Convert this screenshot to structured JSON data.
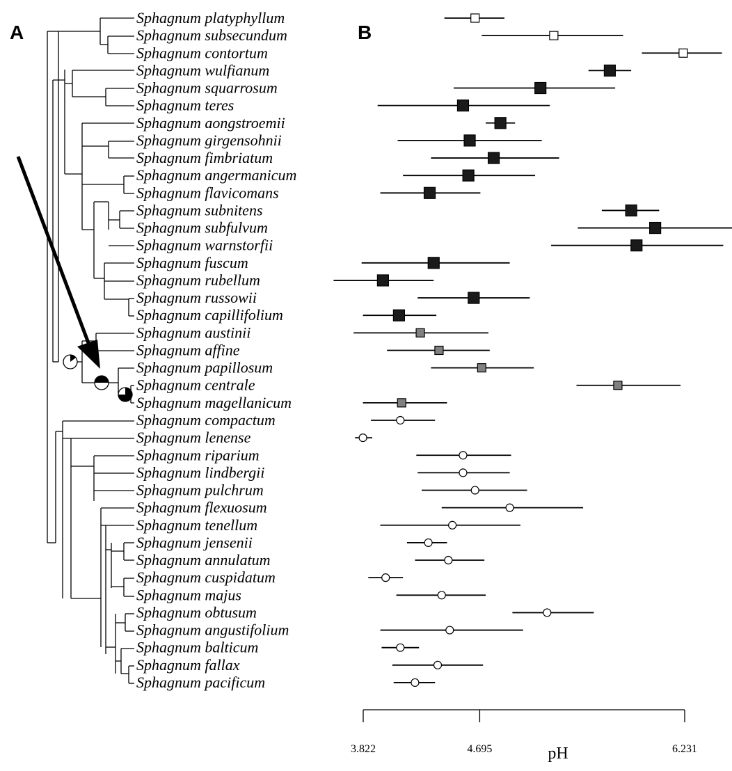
{
  "panels": {
    "a": "A",
    "b": "B"
  },
  "colors": {
    "ink": "#000000",
    "black_group": "#1a1a1a",
    "grey_group": "#808080",
    "white_group": "#ffffff"
  },
  "chart_data": {
    "type": "scatter",
    "subtype": "point-with-range (dot and whisker), aligned to phylogenetic tree",
    "xlabel": "pH",
    "x_ticks": [
      3.822,
      4.695,
      6.231
    ],
    "x_tick_labels": [
      "3.822",
      "4.695",
      "6.231"
    ],
    "xlim": [
      3.822,
      6.231
    ],
    "marker_legend": {
      "open-square": "white square",
      "black-square": "black square",
      "grey-square": "grey square",
      "open-circle": "white circle"
    },
    "species": [
      {
        "name": "Sphagnum platyphyllum",
        "marker": "open-square",
        "ph": 4.66,
        "low": 4.43,
        "high": 4.88
      },
      {
        "name": "Sphagnum subsecundum",
        "marker": "open-square",
        "ph": 5.25,
        "low": 4.71,
        "high": 5.77
      },
      {
        "name": "Sphagnum contortum",
        "marker": "open-square",
        "ph": 6.22,
        "low": 5.91,
        "high": 6.51
      },
      {
        "name": "Sphagnum wulfianum",
        "marker": "black-square",
        "ph": 5.67,
        "low": 5.51,
        "high": 5.83
      },
      {
        "name": "Sphagnum squarrosum",
        "marker": "black-square",
        "ph": 5.15,
        "low": 4.5,
        "high": 5.71
      },
      {
        "name": "Sphagnum teres",
        "marker": "black-square",
        "ph": 4.57,
        "low": 3.93,
        "high": 5.22
      },
      {
        "name": "Sphagnum aongstroemii",
        "marker": "black-square",
        "ph": 4.85,
        "low": 4.74,
        "high": 4.96
      },
      {
        "name": "Sphagnum girgensohnii",
        "marker": "black-square",
        "ph": 4.62,
        "low": 4.08,
        "high": 5.16
      },
      {
        "name": "Sphagnum fimbriatum",
        "marker": "black-square",
        "ph": 4.8,
        "low": 4.33,
        "high": 5.29
      },
      {
        "name": "Sphagnum angermanicum",
        "marker": "black-square",
        "ph": 4.61,
        "low": 4.12,
        "high": 5.11
      },
      {
        "name": "Sphagnum flavicomans",
        "marker": "black-square",
        "ph": 4.32,
        "low": 3.95,
        "high": 4.7
      },
      {
        "name": "Sphagnum subnitens",
        "marker": "black-square",
        "ph": 5.83,
        "low": 5.61,
        "high": 6.04
      },
      {
        "name": "Sphagnum subfulvum",
        "marker": "black-square",
        "ph": 6.01,
        "low": 5.43,
        "high": 6.59
      },
      {
        "name": "Sphagnum warnstorfii",
        "marker": "black-square",
        "ph": 5.87,
        "low": 5.23,
        "high": 6.52
      },
      {
        "name": "Sphagnum fuscum",
        "marker": "black-square",
        "ph": 4.35,
        "low": 3.81,
        "high": 4.92
      },
      {
        "name": "Sphagnum rubellum",
        "marker": "black-square",
        "ph": 3.97,
        "low": 3.6,
        "high": 4.35
      },
      {
        "name": "Sphagnum russowii",
        "marker": "black-square",
        "ph": 4.65,
        "low": 4.23,
        "high": 5.07
      },
      {
        "name": "Sphagnum capillifolium",
        "marker": "black-square",
        "ph": 4.09,
        "low": 3.82,
        "high": 4.37
      },
      {
        "name": "Sphagnum austinii",
        "marker": "grey-square",
        "ph": 4.25,
        "low": 3.75,
        "high": 4.76
      },
      {
        "name": "Sphagnum affine",
        "marker": "grey-square",
        "ph": 4.39,
        "low": 4.0,
        "high": 4.77
      },
      {
        "name": "Sphagnum papillosum",
        "marker": "grey-square",
        "ph": 4.71,
        "low": 4.33,
        "high": 5.1
      },
      {
        "name": "Sphagnum centrale",
        "marker": "grey-square",
        "ph": 5.73,
        "low": 5.42,
        "high": 6.2
      },
      {
        "name": "Sphagnum magellanicum",
        "marker": "grey-square",
        "ph": 4.11,
        "low": 3.82,
        "high": 4.45
      },
      {
        "name": "Sphagnum compactum",
        "marker": "open-circle",
        "ph": 4.1,
        "low": 3.88,
        "high": 4.36
      },
      {
        "name": "Sphagnum lenense",
        "marker": "open-circle",
        "ph": 3.82,
        "low": 3.76,
        "high": 3.89
      },
      {
        "name": "Sphagnum riparium",
        "marker": "open-circle",
        "ph": 4.57,
        "low": 4.22,
        "high": 4.93
      },
      {
        "name": "Sphagnum lindbergii",
        "marker": "open-circle",
        "ph": 4.57,
        "low": 4.23,
        "high": 4.92
      },
      {
        "name": "Sphagnum pulchrum",
        "marker": "open-circle",
        "ph": 4.66,
        "low": 4.26,
        "high": 5.05
      },
      {
        "name": "Sphagnum flexuosum",
        "marker": "open-circle",
        "ph": 4.92,
        "low": 4.41,
        "high": 5.47
      },
      {
        "name": "Sphagnum tenellum",
        "marker": "open-circle",
        "ph": 4.49,
        "low": 3.95,
        "high": 5.0
      },
      {
        "name": "Sphagnum jensenii",
        "marker": "open-circle",
        "ph": 4.31,
        "low": 4.15,
        "high": 4.45
      },
      {
        "name": "Sphagnum annulatum",
        "marker": "open-circle",
        "ph": 4.46,
        "low": 4.21,
        "high": 4.73
      },
      {
        "name": "Sphagnum cuspidatum",
        "marker": "open-circle",
        "ph": 3.99,
        "low": 3.86,
        "high": 4.12
      },
      {
        "name": "Sphagnum majus",
        "marker": "open-circle",
        "ph": 4.41,
        "low": 4.07,
        "high": 4.74
      },
      {
        "name": "Sphagnum obtusum",
        "marker": "open-circle",
        "ph": 5.2,
        "low": 4.94,
        "high": 5.55
      },
      {
        "name": "Sphagnum angustifolium",
        "marker": "open-circle",
        "ph": 4.47,
        "low": 3.95,
        "high": 5.02
      },
      {
        "name": "Sphagnum balticum",
        "marker": "open-circle",
        "ph": 4.1,
        "low": 3.96,
        "high": 4.24
      },
      {
        "name": "Sphagnum fallax",
        "marker": "open-circle",
        "ph": 4.38,
        "low": 4.04,
        "high": 4.72
      },
      {
        "name": "Sphagnum pacificum",
        "marker": "open-circle",
        "ph": 4.21,
        "low": 4.05,
        "high": 4.36
      }
    ]
  }
}
